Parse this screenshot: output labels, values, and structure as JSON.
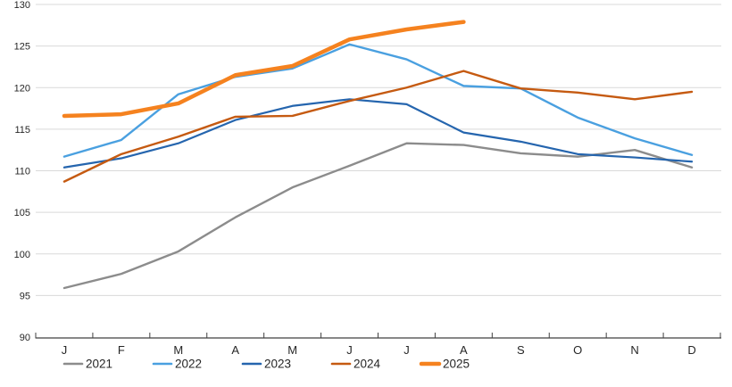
{
  "chart_data": {
    "type": "line",
    "title": "",
    "xlabel": "",
    "ylabel": "",
    "categories": [
      "J",
      "F",
      "M",
      "A",
      "M",
      "J",
      "J",
      "A",
      "S",
      "O",
      "N",
      "D"
    ],
    "series": [
      {
        "name": "2021",
        "color": "#8C8C8C",
        "width": 2.4,
        "values": [
          95.9,
          97.6,
          100.3,
          104.4,
          108.0,
          110.6,
          113.3,
          113.1,
          112.1,
          111.7,
          112.5,
          110.4
        ]
      },
      {
        "name": "2022",
        "color": "#4AA0E0",
        "width": 2.4,
        "values": [
          111.7,
          113.7,
          119.2,
          121.3,
          122.3,
          125.2,
          123.4,
          120.2,
          119.9,
          116.4,
          113.9,
          111.9
        ]
      },
      {
        "name": "2023",
        "color": "#2565AE",
        "width": 2.2,
        "values": [
          110.4,
          111.5,
          113.3,
          116.1,
          117.8,
          118.6,
          118.0,
          114.6,
          113.5,
          112.0,
          111.6,
          111.1
        ]
      },
      {
        "name": "2024",
        "color": "#C55A11",
        "width": 2.4,
        "values": [
          108.7,
          112.0,
          114.1,
          116.5,
          116.6,
          118.4,
          120.0,
          122.0,
          119.9,
          119.4,
          118.6,
          119.5
        ]
      },
      {
        "name": "2025",
        "color": "#F5821F",
        "width": 4.5,
        "values": [
          116.6,
          116.8,
          118.1,
          121.5,
          122.6,
          125.8,
          127.0,
          127.9
        ]
      }
    ],
    "ylim": [
      90,
      130
    ],
    "ytick_step": 5,
    "grid": true,
    "legend_position": "bottom",
    "axis_color": "#404040",
    "grid_color": "#D9D9D9",
    "label_color": "#262626"
  }
}
